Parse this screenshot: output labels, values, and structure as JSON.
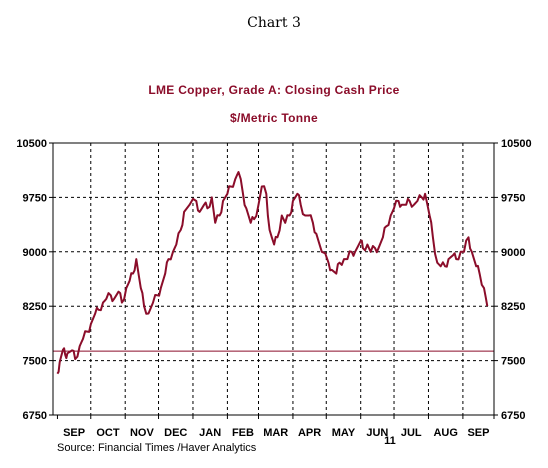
{
  "caption": "Chart 3",
  "source": "Source:  Financial Times /Haver Analytics",
  "chart_data": {
    "type": "line",
    "title": "LME Copper, Grade A: Closing Cash Price",
    "subtitle": "$/Metric Tonne",
    "ylim": [
      6750,
      10500
    ],
    "y_ticks": [
      "10500",
      "9750",
      "9000",
      "8250",
      "7500",
      "6750"
    ],
    "x_ticks": [
      "SEP",
      "OCT",
      "NOV",
      "DEC",
      "JAN",
      "FEB",
      "MAR",
      "APR",
      "MAY",
      "JUN",
      "JUL",
      "AUG",
      "SEP"
    ],
    "year_label": "11",
    "grid": true,
    "reference_line": 7630,
    "colors": {
      "series": "#8b0d2a",
      "reference": "#8b0d2a",
      "grid": "#000000"
    },
    "series": [
      {
        "x": [
          "2010-09-01",
          "2010-09-03",
          "2010-09-06",
          "2010-09-08",
          "2010-09-10",
          "2010-09-14",
          "2010-09-17",
          "2010-09-21",
          "2010-09-24",
          "2010-09-28",
          "2010-10-01",
          "2010-10-05",
          "2010-10-08",
          "2010-10-12",
          "2010-10-15",
          "2010-10-19",
          "2010-10-22",
          "2010-10-26",
          "2010-10-29",
          "2010-11-02",
          "2010-11-05",
          "2010-11-08",
          "2010-11-11",
          "2010-11-15",
          "2010-11-18",
          "2010-11-22",
          "2010-11-26",
          "2010-11-30",
          "2010-12-03",
          "2010-12-07",
          "2010-12-10",
          "2010-12-14",
          "2010-12-17",
          "2010-12-21",
          "2010-12-24",
          "2010-12-29",
          "2011-01-04",
          "2011-01-07",
          "2011-01-11",
          "2011-01-14",
          "2011-01-18",
          "2011-01-21",
          "2011-01-25",
          "2011-01-28",
          "2011-02-01",
          "2011-02-04",
          "2011-02-08",
          "2011-02-11",
          "2011-02-15",
          "2011-02-18",
          "2011-02-22",
          "2011-02-25",
          "2011-03-01",
          "2011-03-04",
          "2011-03-08",
          "2011-03-11",
          "2011-03-15",
          "2011-03-18",
          "2011-03-22",
          "2011-03-25",
          "2011-03-29",
          "2011-04-01",
          "2011-04-05",
          "2011-04-08",
          "2011-04-12",
          "2011-04-15",
          "2011-04-19",
          "2011-04-22",
          "2011-04-27",
          "2011-05-03",
          "2011-05-06",
          "2011-05-10",
          "2011-05-13",
          "2011-05-17",
          "2011-05-20",
          "2011-05-24",
          "2011-05-27",
          "2011-06-01",
          "2011-06-03",
          "2011-06-07",
          "2011-06-10",
          "2011-06-14",
          "2011-06-17",
          "2011-06-21",
          "2011-06-24",
          "2011-06-28",
          "2011-07-01",
          "2011-07-05",
          "2011-07-08",
          "2011-07-12",
          "2011-07-15",
          "2011-07-19",
          "2011-07-22",
          "2011-07-26",
          "2011-07-29",
          "2011-08-02",
          "2011-08-05",
          "2011-08-09",
          "2011-08-12",
          "2011-08-16",
          "2011-08-19",
          "2011-08-23",
          "2011-08-26",
          "2011-08-30",
          "2011-09-02",
          "2011-09-06",
          "2011-09-09",
          "2011-09-13",
          "2011-09-16",
          "2011-09-20",
          "2011-09-23"
        ],
        "values": [
          7320,
          7480,
          7650,
          7580,
          7600,
          7640,
          7520,
          7700,
          7800,
          7900,
          8000,
          8150,
          8200,
          8300,
          8350,
          8400,
          8350,
          8450,
          8300,
          8500,
          8600,
          8700,
          8900,
          8500,
          8250,
          8150,
          8300,
          8400,
          8500,
          8700,
          8900,
          9000,
          9100,
          9300,
          9550,
          9650,
          9700,
          9550,
          9650,
          9600,
          9750,
          9400,
          9500,
          9700,
          9800,
          9900,
          10000,
          10100,
          9800,
          9600,
          9400,
          9450,
          9650,
          9900,
          9800,
          9300,
          9100,
          9200,
          9500,
          9400,
          9500,
          9700,
          9800,
          9650,
          9500,
          9500,
          9400,
          9250,
          9000,
          8850,
          8750,
          8700,
          8850,
          8900,
          8900,
          9000,
          9000,
          9150,
          9050,
          9100,
          9000,
          9050,
          9050,
          9200,
          9350,
          9500,
          9600,
          9700,
          9650,
          9650,
          9700,
          9650,
          9700,
          9750,
          9800,
          9500,
          9200,
          8850,
          8800,
          8800,
          8900,
          8950,
          8900,
          9000,
          9000,
          9200,
          9000,
          8800,
          8700,
          8500,
          8250
        ]
      }
    ]
  }
}
